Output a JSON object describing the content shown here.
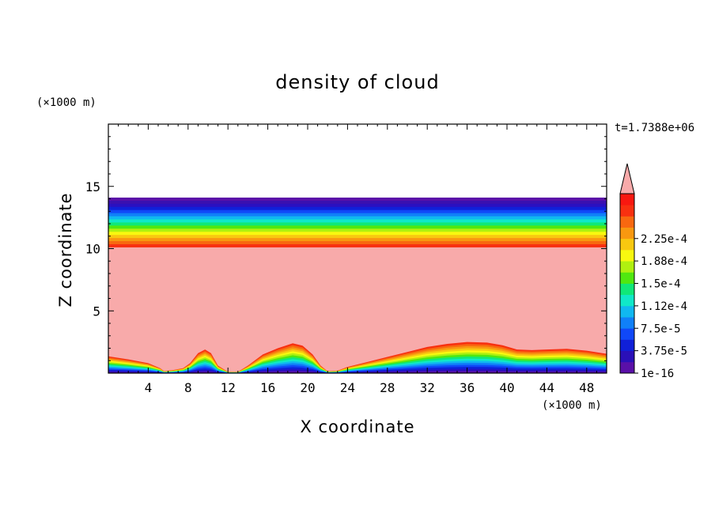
{
  "chart_data": {
    "type": "heatmap",
    "title": "density of cloud",
    "xlabel": "X coordinate",
    "ylabel": "Z coordinate",
    "x_unit": "(×1000 m)",
    "y_unit": "(×1000 m)",
    "time_label": "t=1.7388e+06",
    "xlim": [
      0,
      50
    ],
    "ylim": [
      0,
      20
    ],
    "x_ticks": [
      4,
      8,
      12,
      16,
      20,
      24,
      28,
      32,
      36,
      40,
      44,
      48
    ],
    "y_ticks": [
      5,
      10,
      15
    ],
    "colorbar": {
      "labels": [
        "1e-16",
        "3.75e-5",
        "7.5e-5",
        "1.12e-4",
        "1.5e-4",
        "1.88e-4",
        "2.25e-4"
      ],
      "colors": [
        "#5a10a8",
        "#2a10b8",
        "#1020d8",
        "#1048f8",
        "#1080f8",
        "#10b8f0",
        "#10e8c8",
        "#10e878",
        "#50e810",
        "#b0f010",
        "#f8f810",
        "#f8c810",
        "#f89810",
        "#f86810",
        "#f83010",
        "#f81810"
      ],
      "over_color": "#f8aaaa"
    },
    "fields": {
      "cloud_top_km": 14.1,
      "saturated_top_km": 10.1,
      "saturated_color": "#f8aaaa",
      "layer_colors_top_down": [
        "#5a10a8",
        "#3a10b0",
        "#2a10c0",
        "#1020d8",
        "#1048f8",
        "#1080f8",
        "#10b8f0",
        "#10e8c8",
        "#10e878",
        "#50e810",
        "#b0f010",
        "#f8f810",
        "#f8c810",
        "#f89810",
        "#f86810",
        "#f83010"
      ],
      "lower_boundary": {
        "x": [
          0,
          2,
          4,
          5.2,
          5.6,
          6.5,
          7.5,
          8.2,
          9.0,
          9.7,
          10.3,
          11.0,
          12.0,
          13.0,
          14.0,
          15.5,
          17.0,
          18.5,
          19.5,
          20.5,
          21.3,
          22.0,
          23.0,
          24.0,
          26.0,
          28.0,
          30.0,
          32.0,
          34.0,
          36.0,
          38.0,
          39.5,
          41.0,
          42.5,
          44.0,
          46.0,
          48.0,
          50.0
        ],
        "z": [
          1.35,
          1.1,
          0.8,
          0.4,
          0.15,
          0.25,
          0.4,
          0.8,
          1.6,
          1.9,
          1.6,
          0.6,
          0.1,
          0.1,
          0.6,
          1.5,
          2.0,
          2.4,
          2.2,
          1.5,
          0.6,
          0.15,
          0.2,
          0.5,
          0.9,
          1.3,
          1.7,
          2.1,
          2.35,
          2.5,
          2.45,
          2.25,
          1.9,
          1.85,
          1.9,
          1.95,
          1.8,
          1.55
        ]
      }
    }
  }
}
